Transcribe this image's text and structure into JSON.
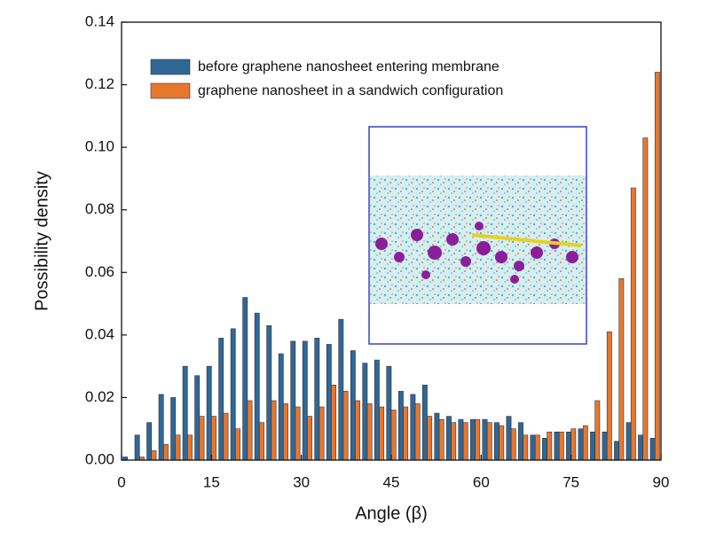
{
  "chart_data": {
    "type": "bar",
    "xlabel": "Angle (β)",
    "ylabel": "Possibility density",
    "x": [
      1,
      3,
      5,
      7,
      9,
      11,
      13,
      15,
      17,
      19,
      21,
      23,
      25,
      27,
      29,
      31,
      33,
      35,
      37,
      39,
      41,
      43,
      45,
      47,
      49,
      51,
      53,
      55,
      57,
      59,
      61,
      63,
      65,
      67,
      69,
      71,
      73,
      75,
      77,
      79,
      81,
      83,
      85,
      87,
      89
    ],
    "series": [
      {
        "name": "before graphene nanosheet entering membrane",
        "color": "#2f6797",
        "values": [
          0.001,
          0.008,
          0.012,
          0.021,
          0.02,
          0.03,
          0.027,
          0.03,
          0.039,
          0.042,
          0.052,
          0.047,
          0.043,
          0.034,
          0.038,
          0.038,
          0.039,
          0.037,
          0.045,
          0.035,
          0.031,
          0.032,
          0.03,
          0.022,
          0.021,
          0.024,
          0.015,
          0.014,
          0.013,
          0.013,
          0.013,
          0.012,
          0.014,
          0.012,
          0.008,
          0.007,
          0.009,
          0.009,
          0.01,
          0.009,
          0.009,
          0.006,
          0.012,
          0.008,
          0.007
        ]
      },
      {
        "name": "graphene nanosheet in a sandwich configuration",
        "color": "#e8772e",
        "values": [
          0,
          0.001,
          0.003,
          0.005,
          0.008,
          0.008,
          0.014,
          0.014,
          0.015,
          0.01,
          0.019,
          0.012,
          0.019,
          0.018,
          0.017,
          0.014,
          0.017,
          0.024,
          0.022,
          0.019,
          0.018,
          0.017,
          0.016,
          0.017,
          0.018,
          0.014,
          0.013,
          0.012,
          0.012,
          0.013,
          0.012,
          0.011,
          0.01,
          0.008,
          0.008,
          0.009,
          0.009,
          0.01,
          0.011,
          0.019,
          0.041,
          0.058,
          0.087,
          0.103,
          0.124
        ]
      }
    ],
    "xlim": [
      0,
      90
    ],
    "xticks": [
      0,
      15,
      30,
      45,
      60,
      75,
      90
    ],
    "ylim": [
      0,
      0.14
    ],
    "yticks": [
      {
        "value": 0,
        "label": "0.00"
      },
      0.02,
      0.04,
      0.06,
      0.08,
      {
        "value": 0.1,
        "label": "0.10"
      },
      0.12,
      0.14
    ],
    "legend": "upper left",
    "grid": false
  }
}
